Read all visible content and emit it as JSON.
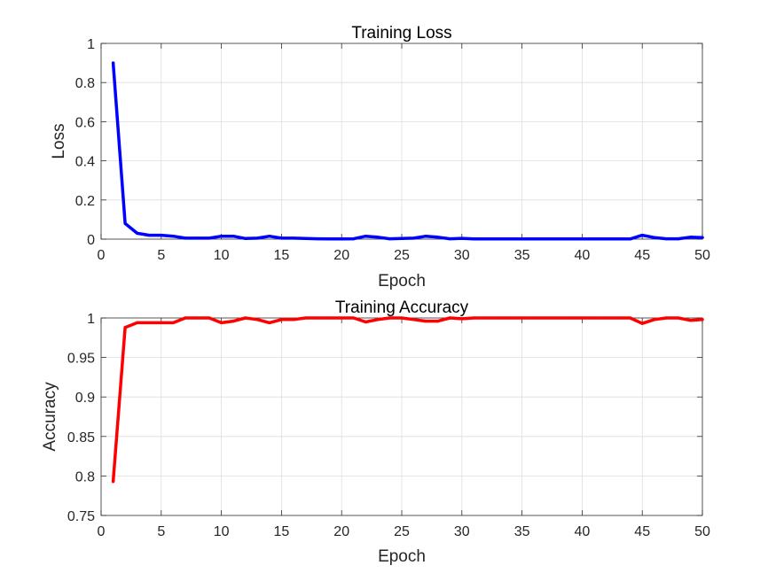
{
  "chart_data": [
    {
      "type": "line",
      "title": "Training Loss",
      "xlabel": "Epoch",
      "ylabel": "Loss",
      "xlim": [
        0,
        50
      ],
      "ylim": [
        0,
        1
      ],
      "xticks": [
        "0",
        "5",
        "10",
        "15",
        "20",
        "25",
        "30",
        "35",
        "40",
        "45",
        "50"
      ],
      "yticks": [
        "0",
        "0.2",
        "0.4",
        "0.6",
        "0.8",
        "1"
      ],
      "grid": true,
      "color": "#0000ff",
      "x": [
        1,
        2,
        3,
        4,
        5,
        6,
        7,
        8,
        9,
        10,
        11,
        12,
        13,
        14,
        15,
        16,
        17,
        18,
        19,
        20,
        21,
        22,
        23,
        24,
        25,
        26,
        27,
        28,
        29,
        30,
        31,
        32,
        33,
        34,
        35,
        36,
        37,
        38,
        39,
        40,
        41,
        42,
        43,
        44,
        45,
        46,
        47,
        48,
        49,
        50
      ],
      "series": [
        {
          "values": [
            0.9,
            0.08,
            0.03,
            0.02,
            0.02,
            0.015,
            0.005,
            0.005,
            0.005,
            0.015,
            0.015,
            0.003,
            0.005,
            0.015,
            0.005,
            0.005,
            0.003,
            0.002,
            0.001,
            0.001,
            0.002,
            0.015,
            0.01,
            0.002,
            0.003,
            0.005,
            0.015,
            0.01,
            0.002,
            0.004,
            0.001,
            0.001,
            0.001,
            0.001,
            0.001,
            0.001,
            0.001,
            0.001,
            0.001,
            0.001,
            0.001,
            0.001,
            0.001,
            0.001,
            0.02,
            0.008,
            0.002,
            0.002,
            0.01,
            0.008
          ]
        }
      ]
    },
    {
      "type": "line",
      "title": "Training Accuracy",
      "xlabel": "Epoch",
      "ylabel": "Accuracy",
      "xlim": [
        0,
        50
      ],
      "ylim": [
        0.75,
        1
      ],
      "xticks": [
        "0",
        "5",
        "10",
        "15",
        "20",
        "25",
        "30",
        "35",
        "40",
        "45",
        "50"
      ],
      "yticks": [
        "0.75",
        "0.8",
        "0.85",
        "0.9",
        "0.95",
        "1"
      ],
      "grid": true,
      "color": "#ff0000",
      "x": [
        1,
        2,
        3,
        4,
        5,
        6,
        7,
        8,
        9,
        10,
        11,
        12,
        13,
        14,
        15,
        16,
        17,
        18,
        19,
        20,
        21,
        22,
        23,
        24,
        25,
        26,
        27,
        28,
        29,
        30,
        31,
        32,
        33,
        34,
        35,
        36,
        37,
        38,
        39,
        40,
        41,
        42,
        43,
        44,
        45,
        46,
        47,
        48,
        49,
        50
      ],
      "series": [
        {
          "values": [
            0.793,
            0.988,
            0.994,
            0.994,
            0.994,
            0.994,
            1.0,
            1.0,
            1.0,
            0.994,
            0.996,
            1.0,
            0.998,
            0.994,
            0.998,
            0.998,
            1.0,
            1.0,
            1.0,
            1.0,
            1.0,
            0.995,
            0.998,
            1.0,
            1.0,
            0.998,
            0.996,
            0.996,
            1.0,
            0.999,
            1.0,
            1.0,
            1.0,
            1.0,
            1.0,
            1.0,
            1.0,
            1.0,
            1.0,
            1.0,
            1.0,
            1.0,
            1.0,
            1.0,
            0.993,
            0.998,
            1.0,
            1.0,
            0.997,
            0.998
          ]
        }
      ]
    }
  ]
}
